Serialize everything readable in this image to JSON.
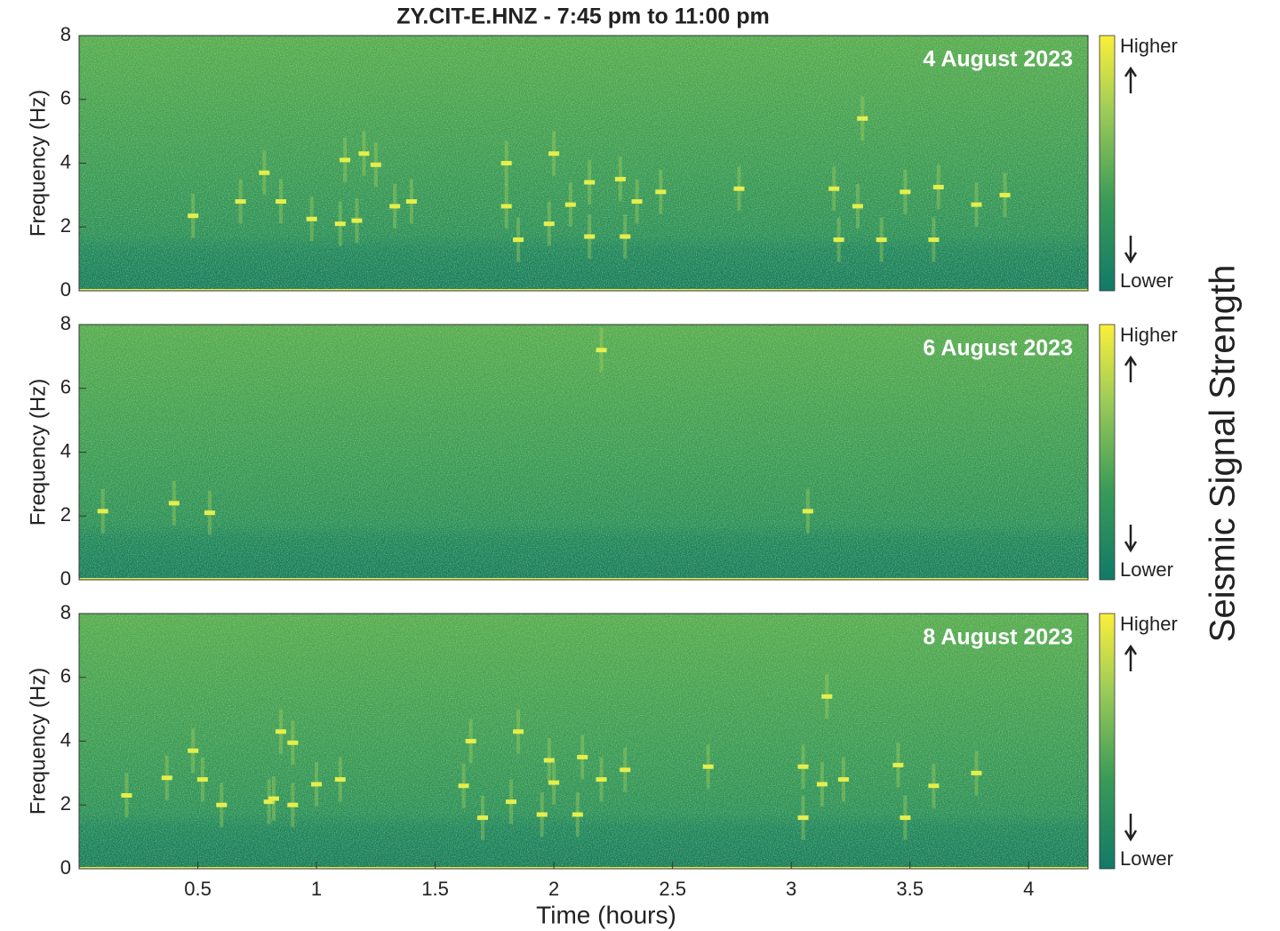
{
  "chart_data": [
    {
      "type": "spectrogram",
      "title": "ZY.CIT-E.HNZ - 7:45 pm to 11:00 pm",
      "annotation": "4 August 2023",
      "ylabel": "Frequency (Hz)",
      "xlim": [
        0,
        4.25
      ],
      "ylim": [
        0,
        8
      ],
      "yticks": [
        0,
        2,
        4,
        6,
        8
      ],
      "colorbar": {
        "high": "Higher",
        "low": "Lower"
      },
      "events": {
        "x": [
          0.48,
          0.68,
          0.78,
          0.85,
          0.98,
          1.1,
          1.12,
          1.2,
          1.17,
          1.25,
          1.33,
          1.4,
          1.8,
          1.8,
          1.85,
          1.98,
          2.0,
          2.07,
          2.15,
          2.15,
          2.28,
          2.3,
          2.35,
          2.45,
          2.78,
          3.18,
          3.28,
          3.3,
          3.2,
          3.38,
          3.48,
          3.6,
          3.62,
          3.78,
          3.9
        ],
        "y": [
          2.35,
          2.8,
          3.7,
          2.8,
          2.25,
          2.1,
          4.1,
          4.3,
          2.2,
          3.95,
          2.65,
          2.8,
          2.65,
          4.0,
          1.6,
          2.1,
          4.3,
          2.7,
          1.7,
          3.4,
          3.5,
          1.7,
          2.8,
          3.1,
          3.2,
          3.2,
          2.65,
          5.4,
          1.6,
          1.6,
          3.1,
          1.6,
          3.25,
          2.7,
          3.0
        ]
      }
    },
    {
      "type": "spectrogram",
      "annotation": "6 August 2023",
      "ylabel": "Frequency (Hz)",
      "xlim": [
        0,
        4.25
      ],
      "ylim": [
        0,
        8
      ],
      "yticks": [
        0,
        2,
        4,
        6,
        8
      ],
      "colorbar": {
        "high": "Higher",
        "low": "Lower"
      },
      "colorbar_label": "Seismic Signal Strength",
      "events": {
        "x": [
          0.1,
          0.4,
          0.55,
          2.2,
          3.07
        ],
        "y": [
          2.15,
          2.4,
          2.1,
          7.2,
          2.15
        ]
      }
    },
    {
      "type": "spectrogram",
      "annotation": "8 August 2023",
      "ylabel": "Frequency (Hz)",
      "xlabel": "Time (hours)",
      "xlim": [
        0,
        4.25
      ],
      "ylim": [
        0,
        8
      ],
      "yticks": [
        0,
        2,
        4,
        6,
        8
      ],
      "xticks": [
        0.5,
        1,
        1.5,
        2,
        2.5,
        3,
        3.5,
        4
      ],
      "colorbar": {
        "high": "Higher",
        "low": "Lower"
      },
      "events": {
        "x": [
          0.2,
          0.37,
          0.48,
          0.52,
          0.6,
          0.8,
          0.85,
          0.82,
          0.9,
          0.9,
          1.0,
          1.1,
          1.62,
          1.65,
          1.7,
          1.82,
          1.85,
          1.95,
          1.98,
          2.0,
          2.1,
          2.12,
          2.2,
          2.3,
          2.65,
          3.05,
          3.13,
          3.15,
          3.05,
          3.22,
          3.45,
          3.48,
          3.6,
          3.78
        ],
        "y": [
          2.3,
          2.85,
          3.7,
          2.8,
          2.0,
          2.1,
          4.3,
          2.2,
          3.95,
          2.0,
          2.65,
          2.8,
          2.6,
          4.0,
          1.6,
          2.1,
          4.3,
          1.7,
          3.4,
          2.7,
          1.7,
          3.5,
          2.8,
          3.1,
          3.2,
          3.2,
          2.65,
          5.4,
          1.6,
          2.8,
          3.25,
          1.6,
          2.6,
          3.0
        ]
      }
    }
  ]
}
